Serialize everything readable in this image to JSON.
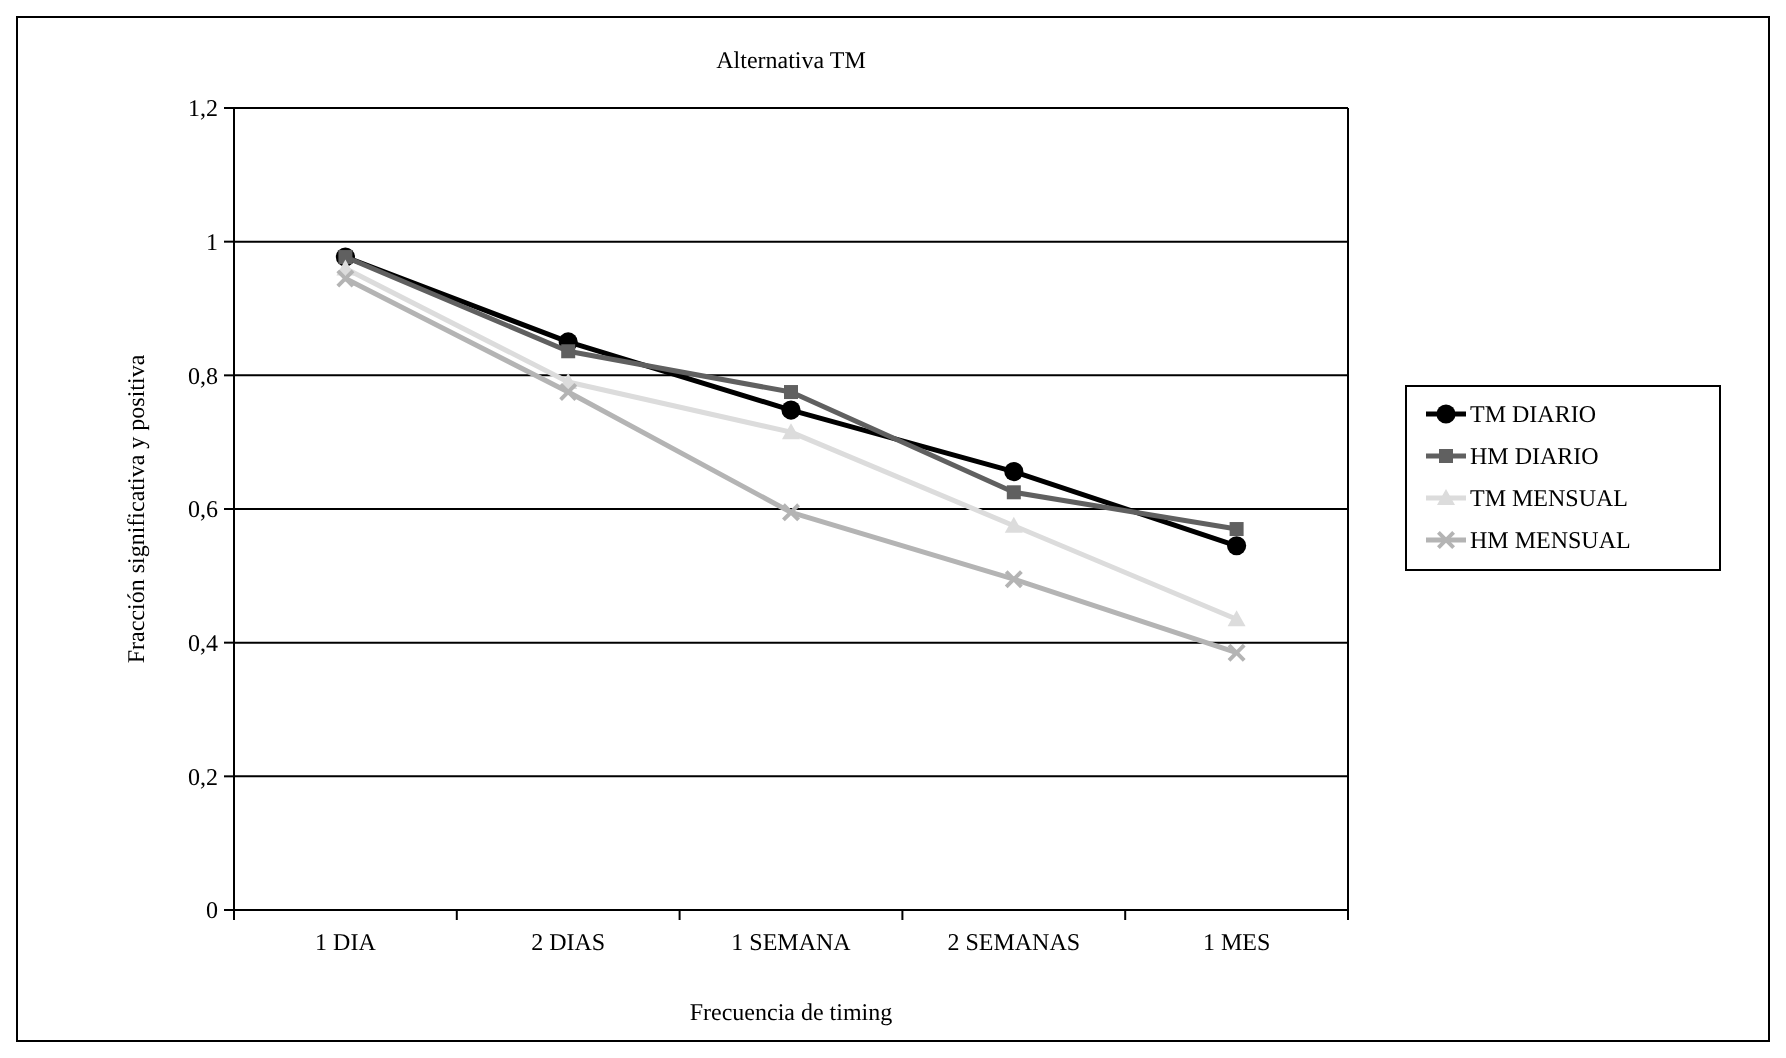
{
  "chart_data": {
    "type": "line",
    "title": "Alternativa TM",
    "xlabel": "Frecuencia de timing",
    "ylabel": "Fracción significativa y positiva",
    "categories": [
      "1 DIA",
      "2 DIAS",
      "1 SEMANA",
      "2 SEMANAS",
      "1 MES"
    ],
    "series": [
      {
        "name": "TM DIARIO",
        "color": "#000000",
        "marker": "circle",
        "values": [
          0.977,
          0.85,
          0.748,
          0.656,
          0.545
        ]
      },
      {
        "name": "HM DIARIO",
        "color": "#606060",
        "marker": "square",
        "values": [
          0.977,
          0.836,
          0.775,
          0.625,
          0.57
        ]
      },
      {
        "name": "TM MENSUAL",
        "color": "#dcdcdc",
        "marker": "triangle",
        "values": [
          0.96,
          0.79,
          0.715,
          0.575,
          0.435
        ]
      },
      {
        "name": "HM MENSUAL",
        "color": "#b4b4b4",
        "marker": "cross",
        "values": [
          0.945,
          0.775,
          0.595,
          0.495,
          0.385
        ]
      }
    ],
    "ylim": [
      0,
      1.2
    ],
    "yticks": [
      0,
      {
        "value": 0.2,
        "label": "0,2"
      },
      {
        "value": 0.4,
        "label": "0,4"
      },
      {
        "value": 0.6,
        "label": "0,6"
      },
      {
        "value": 0.8,
        "label": "0,8"
      },
      1,
      {
        "value": 1.2,
        "label": "1,2"
      }
    ],
    "grid": "y",
    "legend": "right"
  }
}
